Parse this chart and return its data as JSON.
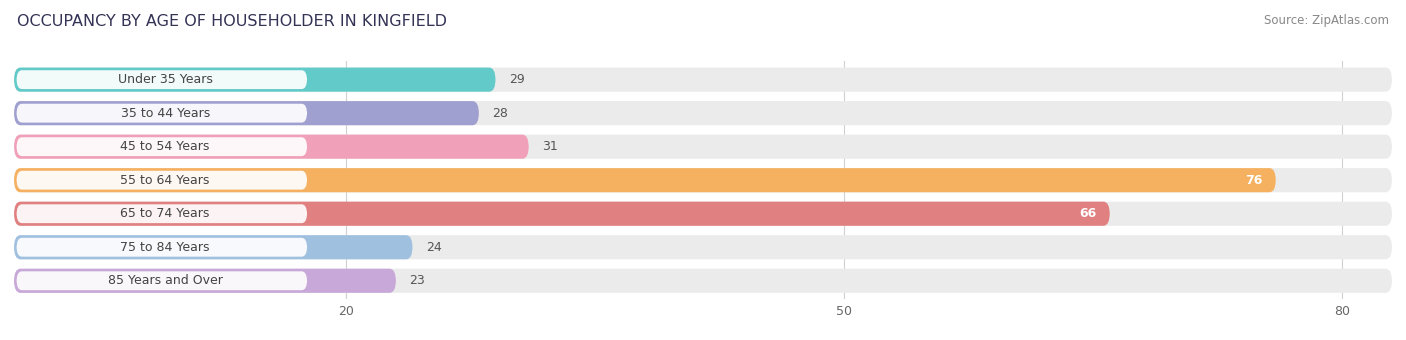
{
  "title": "OCCUPANCY BY AGE OF HOUSEHOLDER IN KINGFIELD",
  "source": "Source: ZipAtlas.com",
  "categories": [
    "Under 35 Years",
    "35 to 44 Years",
    "45 to 54 Years",
    "55 to 64 Years",
    "65 to 74 Years",
    "75 to 84 Years",
    "85 Years and Over"
  ],
  "values": [
    29,
    28,
    31,
    76,
    66,
    24,
    23
  ],
  "bar_colors": [
    "#62cac8",
    "#a0a0d0",
    "#f0a0b8",
    "#f5b060",
    "#e08080",
    "#a0c0e0",
    "#c8a8d8"
  ],
  "bar_bg_color": "#ebebeb",
  "xlim_min": 0,
  "xlim_max": 83,
  "xticks": [
    20,
    50,
    80
  ],
  "title_fontsize": 11.5,
  "source_fontsize": 8.5,
  "axis_fontsize": 9,
  "label_fontsize": 9,
  "value_fontsize": 9,
  "bar_height": 0.72,
  "bar_gap": 1.0,
  "background_color": "#ffffff",
  "label_box_color": "#ffffff",
  "grid_color": "#d0d0d0",
  "label_text_color": "#444444",
  "value_text_dark": "#555555",
  "value_text_light": "#ffffff",
  "large_val_threshold": 50
}
